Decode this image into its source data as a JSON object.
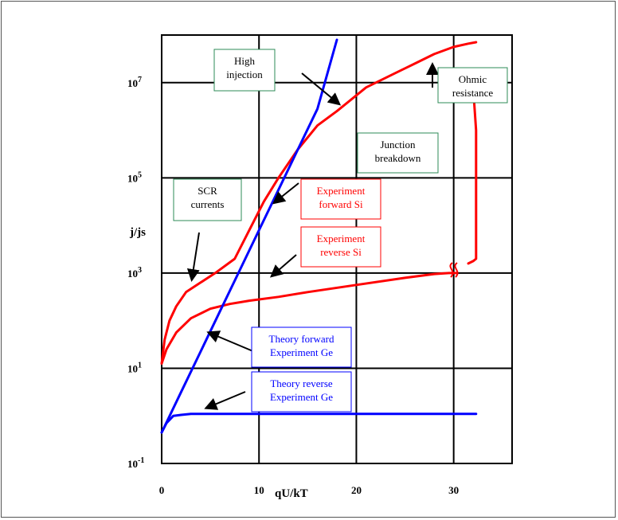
{
  "chart_data": {
    "type": "line",
    "title": "",
    "xlabel": "qU/kT",
    "ylabel": "j/js",
    "xlim": [
      0,
      36
    ],
    "ylim_log10": [
      -1,
      8
    ],
    "y_scale": "log",
    "grid": true,
    "x_ticks": [
      "0",
      "10",
      "20",
      "30"
    ],
    "x_tick_values": [
      0,
      10,
      20,
      30
    ],
    "y_ticks": [
      {
        "value": -1,
        "base": "10",
        "exp": "-1"
      },
      {
        "value": 1,
        "base": "10",
        "exp": "1"
      },
      {
        "value": 3,
        "base": "10",
        "exp": "3"
      },
      {
        "value": 5,
        "base": "10",
        "exp": "5"
      },
      {
        "value": 7,
        "base": "10",
        "exp": "7"
      }
    ],
    "series": [
      {
        "color": "#ff0000",
        "x": [
          0,
          0.3,
          0.8,
          1.5,
          2.5,
          4,
          5.5,
          7.5,
          9,
          10.5,
          12,
          14,
          16,
          18,
          21,
          24,
          26,
          28,
          30,
          31.5,
          32.3
        ],
        "y_log10": [
          1.1,
          1.6,
          2.0,
          2.3,
          2.6,
          2.8,
          3.0,
          3.3,
          3.9,
          4.5,
          5.0,
          5.6,
          6.1,
          6.4,
          6.9,
          7.2,
          7.4,
          7.6,
          7.75,
          7.82,
          7.85
        ]
      },
      {
        "color": "#ff0000",
        "x": [
          0,
          0.5,
          1.5,
          3,
          5,
          7,
          9,
          12,
          15,
          20,
          25,
          28,
          29.5,
          30,
          30.3
        ],
        "y_log10": [
          1.1,
          1.4,
          1.75,
          2.05,
          2.25,
          2.35,
          2.42,
          2.5,
          2.6,
          2.75,
          2.9,
          2.98,
          3.0,
          3.0,
          3.0
        ]
      },
      {
        "color": "#ff0000",
        "x": [
          31.5,
          32,
          32.3,
          32.3,
          32.3,
          32.0,
          31.7
        ],
        "y_log10": [
          3.2,
          3.25,
          3.3,
          4.5,
          6.0,
          6.9,
          6.95
        ]
      },
      {
        "color": "#0000ff",
        "x": [
          0,
          2,
          4,
          6,
          8,
          10,
          12,
          14,
          16,
          18
        ],
        "y_log10": [
          -0.35,
          0.5,
          1.35,
          2.2,
          3.05,
          3.9,
          4.75,
          5.6,
          6.45,
          7.9
        ]
      },
      {
        "color": "#0000ff",
        "x": [
          0,
          0.5,
          1.2,
          2,
          3,
          10,
          20,
          32.3
        ],
        "y_log10": [
          -0.35,
          -0.15,
          0,
          0.02,
          0.04,
          0.04,
          0.04,
          0.04
        ]
      }
    ],
    "annotations": [
      {
        "lines": [
          "High",
          "injection"
        ],
        "color": "#000000",
        "border": "#2e8b57"
      },
      {
        "lines": [
          "Ohmic",
          "resistance"
        ],
        "color": "#000000",
        "border": "#2e8b57"
      },
      {
        "lines": [
          "Junction",
          "breakdown"
        ],
        "color": "#000000",
        "border": "#2e8b57"
      },
      {
        "lines": [
          "SCR",
          "currents"
        ],
        "color": "#000000",
        "border": "#2e8b57"
      },
      {
        "lines": [
          "Experiment",
          "forward Si"
        ],
        "color": "#ff0000",
        "border": "#ff0000"
      },
      {
        "lines": [
          "Experiment",
          "reverse Si"
        ],
        "color": "#ff0000",
        "border": "#ff0000"
      },
      {
        "lines": [
          "Theory forward",
          "Experiment Ge"
        ],
        "color": "#0000ff",
        "border": "#0000ff"
      },
      {
        "lines": [
          "Theory reverse",
          "Experiment Ge"
        ],
        "color": "#0000ff",
        "border": "#0000ff"
      }
    ]
  }
}
